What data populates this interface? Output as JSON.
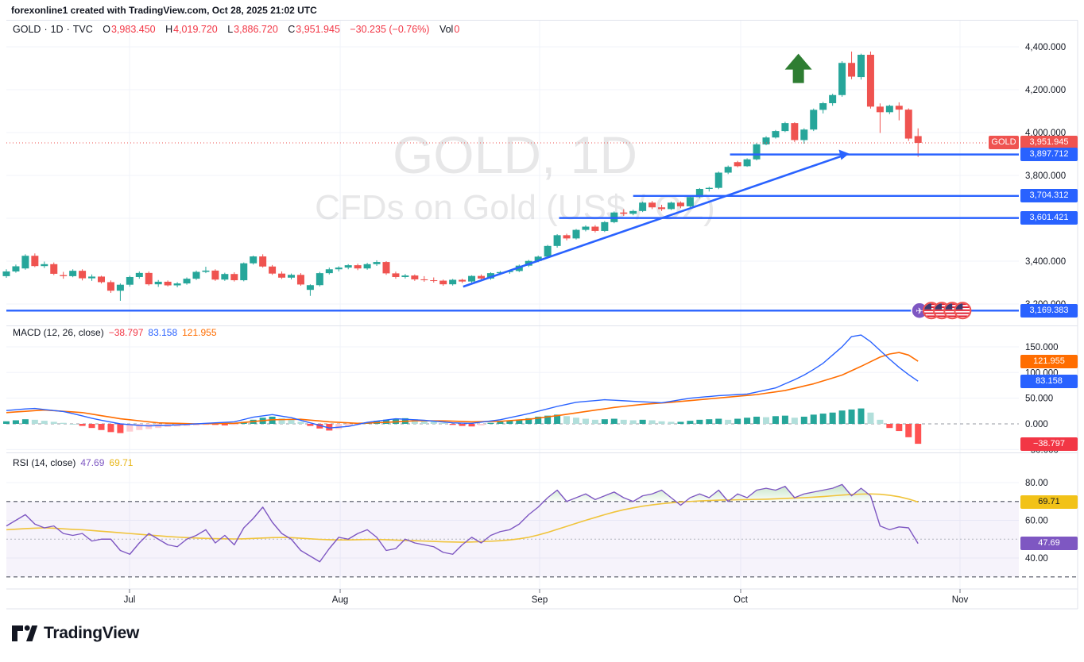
{
  "header": {
    "credit": "forexonline1 created with TradingView.com, Oct 28, 2025 21:02 UTC"
  },
  "symbol_bar": {
    "symbol": "GOLD",
    "sep": "·",
    "interval": "1D",
    "exchange": "TVC",
    "o_label": "O",
    "o": "3,983.450",
    "h_label": "H",
    "h": "4,019.720",
    "l_label": "L",
    "l": "3,886.720",
    "c_label": "C",
    "c": "3,951.945",
    "change": "−30.235 (−0.76%)",
    "vol_label": "Vol",
    "vol": "0"
  },
  "watermark": {
    "line1": "GOLD, 1D",
    "line2": "CFDs on Gold (US$ / OZ)"
  },
  "macd_panel": {
    "legend": "MACD (12, 26, close)",
    "hist_value": "−38.797",
    "macd_value": "83.158",
    "signal_value": "121.955"
  },
  "rsi_panel": {
    "legend": "RSI (14, close)",
    "rsi_value": "47.69",
    "ma_value": "69.71"
  },
  "footer": {
    "brand": "TradingView"
  },
  "colors": {
    "up": "#26a69a",
    "down": "#ef5350",
    "accent_blue": "#2962ff",
    "signal_orange": "#ff6d00",
    "hist_up": "#26a69a",
    "hist_up_fade": "#b2dfdb",
    "hist_down": "#ff5252",
    "hist_down_fade": "#ffcdd2",
    "rsi_purple": "#7e57c2",
    "rsi_yellow": "#f0c43c",
    "rsi_band": "#f5f2fb",
    "overbought_green": "#4caf50",
    "tag_red": "#ef5350",
    "tag_yellow": "#f2c218",
    "arrow_green": "#2e7d32",
    "grid": "#f0f3fa",
    "border": "#e0e3eb",
    "axis_text": "#131722",
    "dashed": "#787b86"
  },
  "chart_data": {
    "type": "candlestick",
    "title": "GOLD, 1D",
    "subtitle": "CFDs on Gold (US$ / OZ)",
    "x_axis": {
      "months": [
        {
          "label": "Jul",
          "index": 12.97
        },
        {
          "label": "Aug",
          "index": 35.15
        },
        {
          "label": "Sep",
          "index": 56.15
        },
        {
          "label": "Oct",
          "index": 77.32
        },
        {
          "label": "Nov",
          "index": 100.42
        }
      ]
    },
    "price_axis": {
      "ticks": [
        {
          "price": 4400,
          "label": "4,400.000"
        },
        {
          "price": 4200,
          "label": "4,200.000"
        },
        {
          "price": 4000,
          "label": "4,000.000"
        },
        {
          "price": 3800,
          "label": "3,800.000"
        },
        {
          "price": 3600,
          "label": "3,600.000"
        },
        {
          "price": 3400,
          "label": "3,400.000"
        },
        {
          "price": 3200,
          "label": "3,200.000"
        }
      ],
      "range": [
        3150,
        4430
      ]
    },
    "candles": [
      [
        3330,
        3362,
        3322,
        3352
      ],
      [
        3352,
        3384,
        3346,
        3376
      ],
      [
        3366,
        3432,
        3360,
        3425
      ],
      [
        3425,
        3436,
        3372,
        3377
      ],
      [
        3377,
        3398,
        3368,
        3386
      ],
      [
        3386,
        3394,
        3335,
        3341
      ],
      [
        3335,
        3350,
        3318,
        3330
      ],
      [
        3330,
        3362,
        3325,
        3355
      ],
      [
        3355,
        3362,
        3310,
        3320
      ],
      [
        3320,
        3338,
        3308,
        3328
      ],
      [
        3328,
        3332,
        3296,
        3302
      ],
      [
        3302,
        3310,
        3252,
        3262
      ],
      [
        3262,
        3296,
        3215,
        3290
      ],
      [
        3290,
        3332,
        3281,
        3326
      ],
      [
        3326,
        3352,
        3318,
        3345
      ],
      [
        3345,
        3352,
        3286,
        3292
      ],
      [
        3292,
        3312,
        3280,
        3304
      ],
      [
        3304,
        3310,
        3282,
        3287
      ],
      [
        3287,
        3302,
        3278,
        3296
      ],
      [
        3296,
        3324,
        3290,
        3318
      ],
      [
        3318,
        3356,
        3312,
        3350
      ],
      [
        3350,
        3374,
        3344,
        3356
      ],
      [
        3356,
        3362,
        3308,
        3314
      ],
      [
        3314,
        3346,
        3308,
        3340
      ],
      [
        3340,
        3348,
        3305,
        3311
      ],
      [
        3311,
        3394,
        3306,
        3390
      ],
      [
        3390,
        3426,
        3384,
        3422
      ],
      [
        3422,
        3432,
        3370,
        3375
      ],
      [
        3375,
        3382,
        3336,
        3342
      ],
      [
        3342,
        3352,
        3317,
        3323
      ],
      [
        3323,
        3342,
        3315,
        3336
      ],
      [
        3336,
        3344,
        3285,
        3291
      ],
      [
        3266,
        3292,
        3238,
        3288
      ],
      [
        3288,
        3350,
        3282,
        3344
      ],
      [
        3344,
        3370,
        3338,
        3362
      ],
      [
        3362,
        3376,
        3352,
        3370
      ],
      [
        3370,
        3386,
        3362,
        3381
      ],
      [
        3381,
        3388,
        3358,
        3366
      ],
      [
        3366,
        3392,
        3360,
        3386
      ],
      [
        3386,
        3404,
        3378,
        3396
      ],
      [
        3396,
        3400,
        3336,
        3343
      ],
      [
        3343,
        3351,
        3318,
        3326
      ],
      [
        3326,
        3340,
        3319,
        3333
      ],
      [
        3333,
        3338,
        3308,
        3315
      ],
      [
        3315,
        3330,
        3304,
        3311
      ],
      [
        3311,
        3324,
        3300,
        3309
      ],
      [
        3309,
        3314,
        3285,
        3292
      ],
      [
        3292,
        3317,
        3286,
        3313
      ],
      [
        3313,
        3318,
        3298,
        3305
      ],
      [
        3305,
        3334,
        3299,
        3331
      ],
      [
        3331,
        3338,
        3312,
        3319
      ],
      [
        3319,
        3348,
        3313,
        3344
      ],
      [
        3344,
        3354,
        3336,
        3349
      ],
      [
        3349,
        3358,
        3341,
        3354
      ],
      [
        3354,
        3384,
        3349,
        3379
      ],
      [
        3379,
        3406,
        3373,
        3401
      ],
      [
        3401,
        3426,
        3395,
        3421
      ],
      [
        3421,
        3476,
        3416,
        3471
      ],
      [
        3471,
        3526,
        3463,
        3521
      ],
      [
        3521,
        3528,
        3497,
        3506
      ],
      [
        3506,
        3550,
        3501,
        3546
      ],
      [
        3546,
        3567,
        3539,
        3561
      ],
      [
        3561,
        3568,
        3534,
        3541
      ],
      [
        3541,
        3587,
        3536,
        3582
      ],
      [
        3582,
        3632,
        3577,
        3627
      ],
      [
        3627,
        3642,
        3611,
        3621
      ],
      [
        3621,
        3640,
        3614,
        3634
      ],
      [
        3634,
        3678,
        3629,
        3673
      ],
      [
        3673,
        3681,
        3643,
        3651
      ],
      [
        3651,
        3663,
        3634,
        3643
      ],
      [
        3643,
        3678,
        3639,
        3673
      ],
      [
        3673,
        3679,
        3647,
        3656
      ],
      [
        3656,
        3704,
        3651,
        3699
      ],
      [
        3699,
        3741,
        3694,
        3737
      ],
      [
        3737,
        3747,
        3725,
        3742
      ],
      [
        3742,
        3818,
        3736,
        3813
      ],
      [
        3813,
        3846,
        3806,
        3840
      ],
      [
        3862,
        3868,
        3838,
        3843
      ],
      [
        3843,
        3880,
        3840,
        3875
      ],
      [
        3875,
        3952,
        3870,
        3945
      ],
      [
        3945,
        3983,
        3941,
        3977
      ],
      [
        3977,
        4012,
        3972,
        4007
      ],
      [
        4007,
        4050,
        4002,
        4044
      ],
      [
        4044,
        4048,
        3956,
        3965
      ],
      [
        3965,
        4020,
        3948,
        4014
      ],
      [
        4014,
        4112,
        4007,
        4106
      ],
      [
        4106,
        4143,
        4089,
        4137
      ],
      [
        4137,
        4181,
        4125,
        4175
      ],
      [
        4175,
        4333,
        4167,
        4325
      ],
      [
        4325,
        4378,
        4249,
        4261
      ],
      [
        4259,
        4368,
        4247,
        4363
      ],
      [
        4363,
        4378,
        4112,
        4121
      ],
      [
        4121,
        4136,
        3998,
        4095
      ],
      [
        4095,
        4130,
        4086,
        4125
      ],
      [
        4125,
        4141,
        4057,
        4107
      ],
      [
        4107,
        4113,
        3961,
        3972
      ],
      [
        3983.45,
        4019.72,
        3886.72,
        3951.945
      ]
    ],
    "last_price": {
      "value": 3951.945,
      "label": "3,951.945",
      "symbol": "GOLD",
      "direction": "down"
    },
    "levels": [
      {
        "price": 3897.712,
        "label": "3,897.712",
        "start_index": 76.2
      },
      {
        "price": 3704.312,
        "label": "3,704.312",
        "start_index": 66.0
      },
      {
        "price": 3601.421,
        "label": "3,601.421",
        "start_index": 58.2
      },
      {
        "price": 3169.383,
        "label": "3,169.383",
        "start_index": 0
      }
    ],
    "trendline": {
      "from": {
        "index": 48.1,
        "price": 3281
      },
      "to": {
        "index": 88.4,
        "price": 3897
      }
    },
    "marker_arrow_up": {
      "index": 83.4,
      "price": 4368
    },
    "events": {
      "price": 3169.383,
      "indices": [
        96.15,
        97.4,
        98.5,
        99.6,
        100.7
      ],
      "icons": [
        {
          "type": "travel"
        },
        {
          "type": "us-flag"
        },
        {
          "type": "us-flag"
        },
        {
          "type": "us-flag"
        },
        {
          "type": "us-flag"
        }
      ]
    },
    "macd": {
      "params": "12, 26, close",
      "macd": [
        26,
        27.5,
        29,
        30,
        28,
        26,
        24,
        20,
        15.5,
        11,
        7,
        3.5,
        0,
        -1.5,
        -3,
        -4,
        -3.3,
        -2.7,
        -2,
        -1,
        0,
        1,
        2,
        3,
        4,
        8.5,
        13,
        15.5,
        18,
        15,
        12,
        7,
        2,
        -3,
        -8,
        -6.5,
        -5,
        -1,
        3,
        5.3,
        7.7,
        10,
        9,
        8,
        7,
        5.3,
        3.7,
        2,
        1.5,
        1,
        3.3,
        5.7,
        8,
        12,
        16,
        20,
        24.7,
        29.3,
        34,
        38,
        42,
        43.7,
        45.3,
        47,
        46,
        45,
        44,
        43,
        42,
        41,
        44,
        47,
        50,
        51.7,
        53.3,
        55,
        56,
        57,
        58,
        62,
        66,
        70,
        78,
        86,
        95,
        106,
        118,
        134,
        150,
        170,
        173,
        160,
        143,
        126,
        110,
        96,
        83.158
      ],
      "signal": [
        22,
        23.3,
        24.5,
        25.8,
        27,
        25.8,
        24.5,
        23.3,
        22,
        19,
        16,
        13,
        10,
        8,
        6,
        4,
        2,
        1.5,
        1,
        0.5,
        0,
        0.3,
        0.5,
        0.8,
        1,
        2.8,
        4.5,
        6.3,
        8,
        8.3,
        8.7,
        9,
        7.3,
        5.7,
        4,
        3,
        2,
        1,
        1.7,
        2.3,
        3,
        4,
        5,
        6,
        6,
        6,
        6,
        5.3,
        4.7,
        4,
        4.3,
        4.7,
        5,
        6.3,
        7.7,
        9,
        11.3,
        13.7,
        16,
        18.7,
        21.3,
        24,
        26.7,
        29.3,
        32,
        34,
        36,
        38,
        39.3,
        40.7,
        42,
        43.7,
        45.3,
        47,
        48.7,
        50.3,
        52,
        53.7,
        55.3,
        57,
        59.7,
        62.3,
        65,
        69.3,
        73.7,
        78,
        83.7,
        89.3,
        95,
        103.5,
        112,
        121,
        130,
        136,
        139,
        134,
        121.955
      ],
      "hist": [
        5,
        7,
        9,
        8,
        6,
        4,
        2,
        0,
        -4,
        -8,
        -12,
        -16,
        -18,
        -15,
        -12,
        -10,
        -8,
        -6,
        -5,
        -4,
        -3,
        -2,
        -2,
        -3,
        -2,
        4,
        8,
        12,
        14,
        11,
        8,
        4,
        -4,
        -9,
        -13,
        -10,
        -5,
        -2,
        3,
        6,
        8,
        10,
        11,
        9,
        7,
        5,
        2,
        -2,
        -4,
        -5,
        -3,
        2,
        4,
        6,
        8,
        11,
        14,
        16,
        18,
        15,
        12,
        10,
        8,
        9,
        10,
        8,
        7,
        8,
        7,
        5,
        4,
        4,
        6,
        8,
        9,
        10,
        8,
        10,
        12,
        14,
        13,
        15,
        16,
        12,
        14,
        18,
        20,
        22,
        26,
        28,
        30,
        22,
        8,
        -8,
        -14,
        -26,
        -38.797
      ],
      "ticks": [
        {
          "value": 150,
          "label": "150.000"
        },
        {
          "value": 100,
          "label": "100.000"
        },
        {
          "value": 50,
          "label": "50.000"
        },
        {
          "value": 0,
          "label": "0.000"
        },
        {
          "value": -50,
          "label": "−50.000"
        }
      ],
      "tags": [
        {
          "value": 121.955,
          "label": "121.955",
          "bg": "#ff6d00",
          "fg": "#ffffff"
        },
        {
          "value": 83.158,
          "label": "83.158",
          "bg": "#2962ff",
          "fg": "#ffffff"
        },
        {
          "value": -38.797,
          "label": "−38.797",
          "bg": "#f23645",
          "fg": "#ffffff"
        }
      ]
    },
    "rsi": {
      "params": "14, close",
      "rsi": [
        57,
        60,
        63,
        58,
        56,
        57,
        53,
        52,
        53,
        49,
        50,
        50,
        44,
        42,
        48,
        53,
        50,
        47,
        46,
        50,
        52,
        55,
        48,
        52,
        47,
        56,
        61,
        67,
        59,
        53,
        50,
        44,
        41,
        38,
        45,
        51,
        50,
        53,
        55,
        51,
        44,
        45,
        50,
        48,
        47,
        46,
        43,
        42,
        47,
        51,
        48,
        52,
        54,
        55,
        58,
        63,
        67,
        72,
        76,
        70,
        72,
        74,
        71,
        73,
        75,
        72,
        70,
        73,
        74,
        76,
        72,
        68,
        72,
        74,
        72,
        76,
        70,
        74,
        72,
        76,
        77,
        76,
        78,
        72,
        74,
        75,
        76,
        77,
        79,
        73,
        77,
        73,
        57,
        55,
        56.5,
        56,
        47.69
      ],
      "ma": [
        55,
        55.3,
        55.6,
        55.8,
        56,
        55.8,
        55.5,
        55.2,
        55,
        54.6,
        54.2,
        53.8,
        53.4,
        53,
        52.6,
        52.2,
        51.8,
        51.4,
        51.1,
        50.8,
        50.6,
        50.4,
        50.3,
        50.2,
        50.1,
        50.2,
        50.4,
        50.6,
        50.8,
        50.9,
        50.8,
        50.5,
        50.2,
        49.9,
        49.7,
        49.6,
        49.6,
        49.7,
        49.8,
        49.8,
        49.7,
        49.5,
        49.3,
        49.2,
        49,
        48.8,
        48.6,
        48.5,
        48.4,
        48.5,
        48.7,
        48.9,
        49.2,
        49.6,
        50.2,
        51,
        52.2,
        53.6,
        55.2,
        56.8,
        58.4,
        60,
        61.5,
        63,
        64.4,
        65.6,
        66.6,
        67.5,
        68.2,
        68.8,
        69.3,
        69.7,
        70,
        70.3,
        70.5,
        70.7,
        70.8,
        70.9,
        71,
        71.1,
        71.2,
        71.4,
        71.6,
        71.8,
        72,
        72.3,
        72.6,
        73,
        73.4,
        73.7,
        73.9,
        74,
        73.8,
        73.3,
        72.5,
        71.3,
        69.71
      ],
      "band": [
        30,
        70
      ],
      "mid_level": 50,
      "ticks": [
        {
          "value": 80,
          "label": "80.00"
        },
        {
          "value": 60,
          "label": "60.00"
        },
        {
          "value": 40,
          "label": "40.00"
        }
      ],
      "tags": [
        {
          "value": 69.71,
          "label": "69.71",
          "bg": "#f2c218",
          "fg": "#131722"
        },
        {
          "value": 47.69,
          "label": "47.69",
          "bg": "#7e57c2",
          "fg": "#ffffff"
        }
      ]
    }
  }
}
